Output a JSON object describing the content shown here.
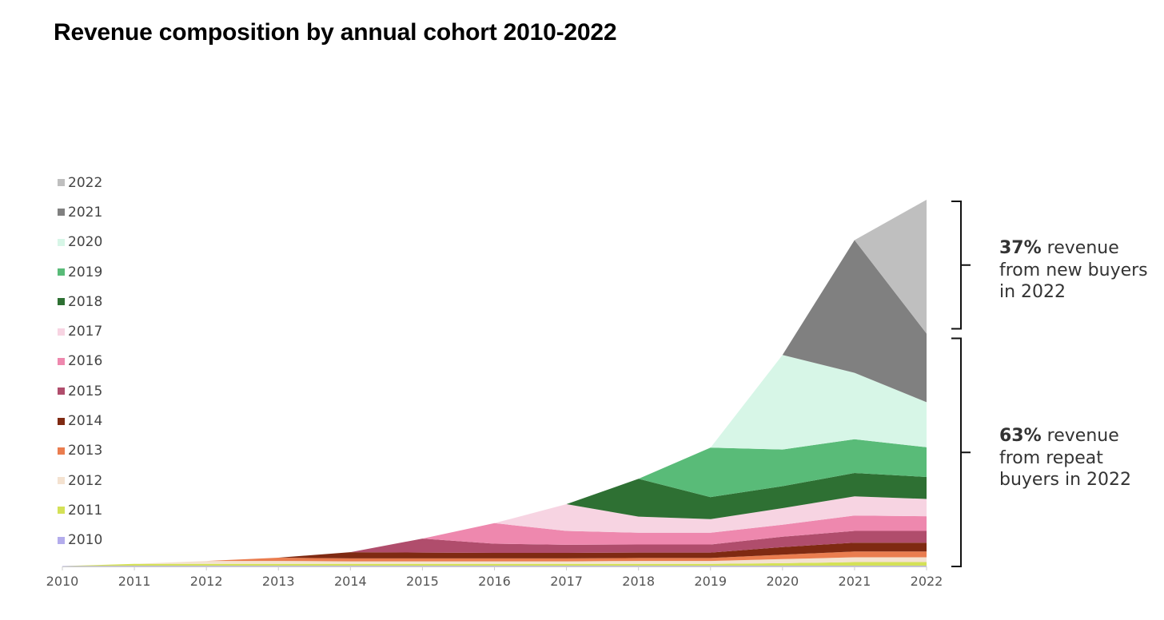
{
  "chart_data": {
    "type": "area",
    "stacked": true,
    "title": "Revenue composition by annual cohort 2010-2022",
    "x": [
      "2010",
      "2011",
      "2012",
      "2013",
      "2014",
      "2015",
      "2016",
      "2017",
      "2018",
      "2019",
      "2020",
      "2021",
      "2022"
    ],
    "ylim": [
      0,
      100
    ],
    "legend_placement": "left",
    "grid": false,
    "series": [
      {
        "name": "2010",
        "color": "#b3acec",
        "values": [
          0.1,
          0.2,
          0.2,
          0.2,
          0.2,
          0.2,
          0.2,
          0.2,
          0.2,
          0.2,
          0.2,
          0.2,
          0.2
        ]
      },
      {
        "name": "2011",
        "color": "#d4e157",
        "values": [
          0,
          0.5,
          0.5,
          0.5,
          0.5,
          0.5,
          0.5,
          0.5,
          0.5,
          0.5,
          0.7,
          1.0,
          1.0
        ]
      },
      {
        "name": "2012",
        "color": "#f4e2d0",
        "values": [
          0,
          0,
          0.8,
          0.8,
          0.7,
          0.7,
          0.7,
          0.7,
          0.8,
          0.8,
          1.1,
          1.3,
          1.3
        ]
      },
      {
        "name": "2013",
        "color": "#ea7d4f",
        "values": [
          0,
          0,
          0,
          0.9,
          0.8,
          0.8,
          0.8,
          0.8,
          0.8,
          0.8,
          1.2,
          1.6,
          1.6
        ]
      },
      {
        "name": "2014",
        "color": "#7f2a12",
        "values": [
          0,
          0,
          0,
          0,
          1.7,
          1.6,
          1.5,
          1.5,
          1.5,
          1.5,
          2.1,
          2.4,
          2.4
        ]
      },
      {
        "name": "2015",
        "color": "#b04d6c",
        "values": [
          0,
          0,
          0,
          0,
          0,
          3.8,
          2.5,
          2.2,
          2.2,
          2.2,
          2.8,
          3.2,
          3.2
        ]
      },
      {
        "name": "2016",
        "color": "#ee88ae",
        "values": [
          0,
          0,
          0,
          0,
          0,
          0,
          5.6,
          3.8,
          3.2,
          3.2,
          3.3,
          4.2,
          4.0
        ]
      },
      {
        "name": "2017",
        "color": "#f7d4e2",
        "values": [
          0,
          0,
          0,
          0,
          0,
          0,
          0,
          7.3,
          4.4,
          3.7,
          4.5,
          5.2,
          4.7
        ]
      },
      {
        "name": "2018",
        "color": "#2e7033",
        "values": [
          0,
          0,
          0,
          0,
          0,
          0,
          0,
          0,
          10.3,
          6.0,
          6.0,
          6.4,
          6.0
        ]
      },
      {
        "name": "2019",
        "color": "#59bb78",
        "values": [
          0,
          0,
          0,
          0,
          0,
          0,
          0,
          0,
          0,
          13.5,
          10.0,
          9.2,
          8.1
        ]
      },
      {
        "name": "2020",
        "color": "#d7f6e7",
        "values": [
          0,
          0,
          0,
          0,
          0,
          0,
          0,
          0,
          0,
          0,
          25.8,
          18.1,
          12.3
        ]
      },
      {
        "name": "2021",
        "color": "#808080",
        "values": [
          0,
          0,
          0,
          0,
          0,
          0,
          0,
          0,
          0,
          0,
          0,
          36.2,
          18.7
        ]
      },
      {
        "name": "2022",
        "color": "#bfbfbf",
        "values": [
          0,
          0,
          0,
          0,
          0,
          0,
          0,
          0,
          0,
          0,
          0,
          0,
          36.5
        ]
      }
    ],
    "annotations": [
      {
        "bold": "37%",
        "text": " revenue from new buyers in 2022"
      },
      {
        "bold": "63%",
        "text": " revenue from repeat buyers in 2022"
      }
    ]
  }
}
